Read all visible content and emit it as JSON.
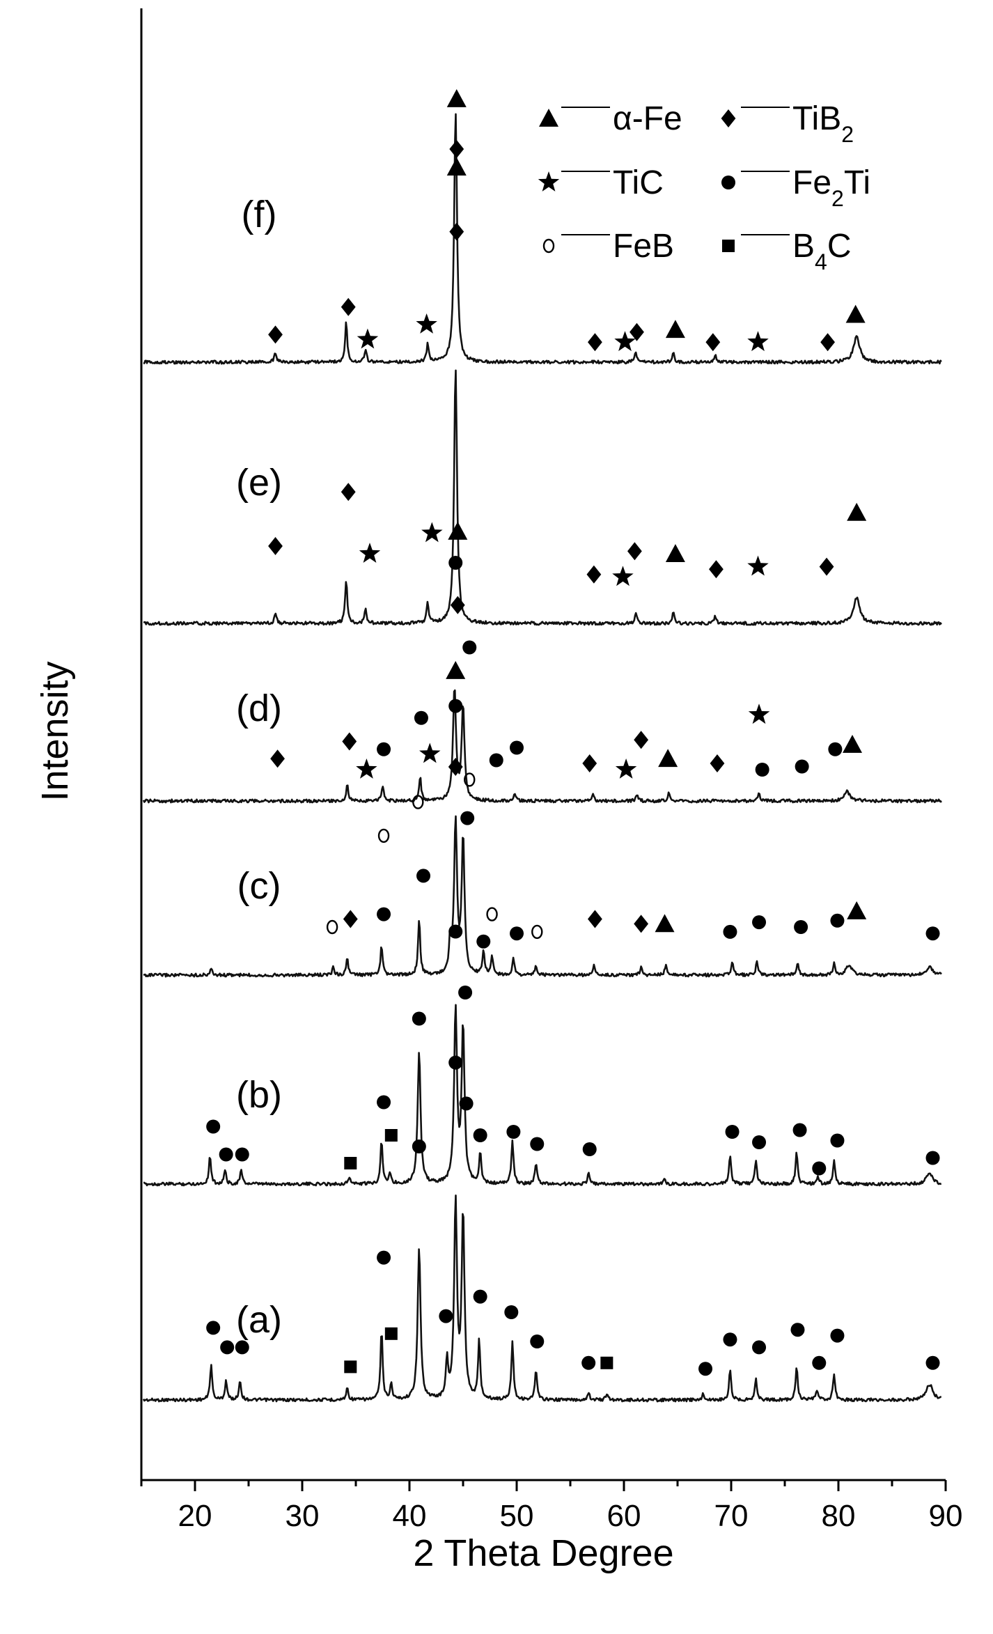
{
  "chart_data": {
    "type": "line",
    "xlabel": "2 Theta Degree",
    "ylabel": "Intensity",
    "xlim": [
      15,
      90
    ],
    "xticks": [
      20,
      30,
      40,
      50,
      60,
      70,
      80,
      90
    ],
    "yticks_shown": false,
    "grid": false,
    "legend": {
      "placement": "top-right",
      "entries": [
        {
          "phase": "alpha_Fe",
          "marker": "triangle",
          "label": "α-Fe"
        },
        {
          "phase": "TiB2",
          "marker": "diamond",
          "label": "TiB",
          "sub": "2"
        },
        {
          "phase": "TiC",
          "marker": "star",
          "label": "TiC"
        },
        {
          "phase": "Fe2Ti",
          "marker": "circle",
          "label": "Fe",
          "sub": "2",
          "suffix": "Ti"
        },
        {
          "phase": "FeB",
          "marker": "open-circle",
          "label": "FeB"
        },
        {
          "phase": "B4C",
          "marker": "square",
          "label": "B",
          "sub": "4",
          "suffix": "C"
        }
      ]
    },
    "series": [
      {
        "name": "(a)",
        "peaks": [
          [
            21.5,
            0.18
          ],
          [
            22.9,
            0.1
          ],
          [
            24.2,
            0.1
          ],
          [
            34.2,
            0.06
          ],
          [
            37.4,
            0.35
          ],
          [
            38.3,
            0.08
          ],
          [
            40.9,
            0.78
          ],
          [
            43.5,
            0.2
          ],
          [
            44.3,
            1.0
          ],
          [
            45.0,
            0.95
          ],
          [
            46.5,
            0.3
          ],
          [
            49.6,
            0.3
          ],
          [
            51.8,
            0.15
          ],
          [
            56.7,
            0.04
          ],
          [
            58.4,
            0.03
          ],
          [
            67.4,
            0.03
          ],
          [
            69.9,
            0.15
          ],
          [
            72.3,
            0.11
          ],
          [
            76.1,
            0.17
          ],
          [
            78.0,
            0.05
          ],
          [
            79.6,
            0.13
          ],
          [
            88.5,
            0.08
          ]
        ],
        "markers": [
          {
            "type": "circle",
            "x": 21.7,
            "y": 0.37
          },
          {
            "type": "circle",
            "x": 23.0,
            "y": 0.27
          },
          {
            "type": "circle",
            "x": 24.4,
            "y": 0.27
          },
          {
            "type": "square",
            "x": 34.5,
            "y": 0.17
          },
          {
            "type": "circle",
            "x": 37.6,
            "y": 0.73
          },
          {
            "type": "square",
            "x": 38.3,
            "y": 0.34
          },
          {
            "type": "circle",
            "x": 40.9,
            "y": 1.3
          },
          {
            "type": "circle",
            "x": 43.4,
            "y": 0.43
          },
          {
            "type": "circle",
            "x": 44.3,
            "y": 1.73
          },
          {
            "type": "circle",
            "x": 45.3,
            "y": 1.52
          },
          {
            "type": "circle",
            "x": 46.6,
            "y": 0.53
          },
          {
            "type": "circle",
            "x": 49.5,
            "y": 0.45
          },
          {
            "type": "circle",
            "x": 51.9,
            "y": 0.3
          },
          {
            "type": "circle",
            "x": 56.7,
            "y": 0.19
          },
          {
            "type": "square",
            "x": 58.4,
            "y": 0.19
          },
          {
            "type": "circle",
            "x": 67.6,
            "y": 0.16
          },
          {
            "type": "circle",
            "x": 69.9,
            "y": 0.31
          },
          {
            "type": "circle",
            "x": 72.6,
            "y": 0.27
          },
          {
            "type": "circle",
            "x": 76.2,
            "y": 0.36
          },
          {
            "type": "circle",
            "x": 78.2,
            "y": 0.19
          },
          {
            "type": "circle",
            "x": 79.9,
            "y": 0.33
          },
          {
            "type": "circle",
            "x": 88.8,
            "y": 0.19
          }
        ]
      },
      {
        "name": "(b)",
        "peaks": [
          [
            21.4,
            0.16
          ],
          [
            22.8,
            0.08
          ],
          [
            24.3,
            0.08
          ],
          [
            34.4,
            0.04
          ],
          [
            37.4,
            0.25
          ],
          [
            38.2,
            0.06
          ],
          [
            40.9,
            0.76
          ],
          [
            44.3,
            1.0
          ],
          [
            45.0,
            0.9
          ],
          [
            46.6,
            0.17
          ],
          [
            49.6,
            0.25
          ],
          [
            51.8,
            0.12
          ],
          [
            56.7,
            0.06
          ],
          [
            63.8,
            0.03
          ],
          [
            69.9,
            0.16
          ],
          [
            72.3,
            0.14
          ],
          [
            76.1,
            0.18
          ],
          [
            78.1,
            0.04
          ],
          [
            79.6,
            0.13
          ],
          [
            88.5,
            0.06
          ]
        ],
        "markers": [
          {
            "type": "circle",
            "x": 21.7,
            "y": 0.33
          },
          {
            "type": "circle",
            "x": 22.9,
            "y": 0.17
          },
          {
            "type": "circle",
            "x": 24.4,
            "y": 0.17
          },
          {
            "type": "square",
            "x": 34.5,
            "y": 0.12
          },
          {
            "type": "circle",
            "x": 37.6,
            "y": 0.47
          },
          {
            "type": "square",
            "x": 38.3,
            "y": 0.28
          },
          {
            "type": "circle",
            "x": 40.9,
            "y": 0.95
          },
          {
            "type": "circle",
            "x": 44.3,
            "y": 1.45
          },
          {
            "type": "circle",
            "x": 45.2,
            "y": 1.1
          },
          {
            "type": "circle",
            "x": 46.6,
            "y": 0.28
          },
          {
            "type": "circle",
            "x": 49.7,
            "y": 0.3
          },
          {
            "type": "circle",
            "x": 51.9,
            "y": 0.23
          },
          {
            "type": "circle",
            "x": 56.8,
            "y": 0.2
          },
          {
            "type": "circle",
            "x": 70.1,
            "y": 0.3
          },
          {
            "type": "circle",
            "x": 72.6,
            "y": 0.24
          },
          {
            "type": "circle",
            "x": 76.4,
            "y": 0.31
          },
          {
            "type": "circle",
            "x": 78.2,
            "y": 0.09
          },
          {
            "type": "circle",
            "x": 79.9,
            "y": 0.25
          },
          {
            "type": "circle",
            "x": 88.8,
            "y": 0.15
          }
        ]
      },
      {
        "name": "(c)",
        "peaks": [
          [
            21.5,
            0.04
          ],
          [
            32.9,
            0.05
          ],
          [
            34.2,
            0.1
          ],
          [
            37.4,
            0.18
          ],
          [
            40.9,
            0.35
          ],
          [
            43.8,
            0.2
          ],
          [
            44.3,
            0.95
          ],
          [
            45.0,
            0.85
          ],
          [
            46.9,
            0.15
          ],
          [
            47.7,
            0.12
          ],
          [
            49.7,
            0.1
          ],
          [
            51.8,
            0.06
          ],
          [
            57.2,
            0.06
          ],
          [
            61.6,
            0.05
          ],
          [
            63.9,
            0.06
          ],
          [
            70.1,
            0.08
          ],
          [
            72.4,
            0.08
          ],
          [
            76.2,
            0.08
          ],
          [
            79.6,
            0.08
          ],
          [
            81.0,
            0.06
          ],
          [
            88.5,
            0.05
          ]
        ],
        "markers": [
          {
            "type": "open-circle",
            "x": 32.8,
            "y": 0.3
          },
          {
            "type": "diamond",
            "x": 34.5,
            "y": 0.35
          },
          {
            "type": "circle",
            "x": 37.6,
            "y": 0.38
          },
          {
            "type": "open-circle",
            "x": 37.6,
            "y": 0.87
          },
          {
            "type": "circle",
            "x": 41.3,
            "y": 0.62
          },
          {
            "type": "open-circle",
            "x": 40.8,
            "y": 1.08
          },
          {
            "type": "diamond",
            "x": 44.3,
            "y": 1.3
          },
          {
            "type": "circle",
            "x": 44.3,
            "y": 1.68
          },
          {
            "type": "triangle",
            "x": 44.3,
            "y": 1.9
          },
          {
            "type": "open-circle",
            "x": 45.6,
            "y": 1.22
          },
          {
            "type": "circle",
            "x": 45.4,
            "y": 0.98
          },
          {
            "type": "circle",
            "x": 46.9,
            "y": 0.21
          },
          {
            "type": "open-circle",
            "x": 47.7,
            "y": 0.38
          },
          {
            "type": "circle",
            "x": 50.0,
            "y": 0.26
          },
          {
            "type": "open-circle",
            "x": 51.9,
            "y": 0.27
          },
          {
            "type": "diamond",
            "x": 57.3,
            "y": 0.35
          },
          {
            "type": "diamond",
            "x": 61.6,
            "y": 0.32
          },
          {
            "type": "triangle",
            "x": 63.8,
            "y": 0.32
          },
          {
            "type": "circle",
            "x": 69.9,
            "y": 0.27
          },
          {
            "type": "circle",
            "x": 72.6,
            "y": 0.33
          },
          {
            "type": "circle",
            "x": 76.5,
            "y": 0.3
          },
          {
            "type": "circle",
            "x": 79.9,
            "y": 0.34
          },
          {
            "type": "triangle",
            "x": 81.7,
            "y": 0.4
          },
          {
            "type": "circle",
            "x": 88.8,
            "y": 0.26
          }
        ]
      },
      {
        "name": "(d)",
        "peaks": [
          [
            34.2,
            0.1
          ],
          [
            37.5,
            0.1
          ],
          [
            41.0,
            0.15
          ],
          [
            44.2,
            0.72
          ],
          [
            45.0,
            0.6
          ],
          [
            49.8,
            0.05
          ],
          [
            57.1,
            0.04
          ],
          [
            61.2,
            0.04
          ],
          [
            64.2,
            0.05
          ],
          [
            72.6,
            0.05
          ],
          [
            80.8,
            0.06
          ]
        ],
        "markers": [
          {
            "type": "diamond",
            "x": 27.7,
            "y": 0.27
          },
          {
            "type": "diamond",
            "x": 34.4,
            "y": 0.38
          },
          {
            "type": "star",
            "x": 36.0,
            "y": 0.2
          },
          {
            "type": "circle",
            "x": 37.6,
            "y": 0.33
          },
          {
            "type": "circle",
            "x": 41.1,
            "y": 0.53
          },
          {
            "type": "star",
            "x": 41.9,
            "y": 0.3
          },
          {
            "type": "diamond",
            "x": 44.5,
            "y": 1.25
          },
          {
            "type": "circle",
            "x": 44.3,
            "y": 1.52
          },
          {
            "type": "triangle",
            "x": 44.5,
            "y": 1.72
          },
          {
            "type": "circle",
            "x": 45.6,
            "y": 0.98
          },
          {
            "type": "circle",
            "x": 48.1,
            "y": 0.26
          },
          {
            "type": "circle",
            "x": 50.0,
            "y": 0.34
          },
          {
            "type": "diamond",
            "x": 56.8,
            "y": 0.24
          },
          {
            "type": "star",
            "x": 60.2,
            "y": 0.2
          },
          {
            "type": "diamond",
            "x": 61.6,
            "y": 0.39
          },
          {
            "type": "triangle",
            "x": 64.1,
            "y": 0.27
          },
          {
            "type": "diamond",
            "x": 68.7,
            "y": 0.24
          },
          {
            "type": "star",
            "x": 72.6,
            "y": 0.55
          },
          {
            "type": "circle",
            "x": 72.9,
            "y": 0.2
          },
          {
            "type": "circle",
            "x": 76.6,
            "y": 0.22
          },
          {
            "type": "circle",
            "x": 79.7,
            "y": 0.33
          },
          {
            "type": "triangle",
            "x": 81.3,
            "y": 0.36
          }
        ]
      },
      {
        "name": "(e)",
        "peaks": [
          [
            27.5,
            0.04
          ],
          [
            34.1,
            0.17
          ],
          [
            35.9,
            0.06
          ],
          [
            41.7,
            0.08
          ],
          [
            44.3,
            1.0
          ],
          [
            61.1,
            0.04
          ],
          [
            64.6,
            0.04
          ],
          [
            68.5,
            0.03
          ],
          [
            81.7,
            0.1
          ]
        ],
        "markers": [
          {
            "type": "diamond",
            "x": 27.5,
            "y": 0.3
          },
          {
            "type": "diamond",
            "x": 34.3,
            "y": 0.51
          },
          {
            "type": "star",
            "x": 36.3,
            "y": 0.27
          },
          {
            "type": "star",
            "x": 42.1,
            "y": 0.35
          },
          {
            "type": "diamond",
            "x": 44.4,
            "y": 1.52
          },
          {
            "type": "triangle",
            "x": 44.4,
            "y": 1.77
          },
          {
            "type": "diamond",
            "x": 57.2,
            "y": 0.19
          },
          {
            "type": "star",
            "x": 59.9,
            "y": 0.18
          },
          {
            "type": "diamond",
            "x": 61.0,
            "y": 0.28
          },
          {
            "type": "triangle",
            "x": 64.8,
            "y": 0.27
          },
          {
            "type": "diamond",
            "x": 68.6,
            "y": 0.21
          },
          {
            "type": "star",
            "x": 72.5,
            "y": 0.22
          },
          {
            "type": "diamond",
            "x": 78.9,
            "y": 0.22
          },
          {
            "type": "triangle",
            "x": 81.7,
            "y": 0.43
          }
        ]
      },
      {
        "name": "(f)",
        "peaks": [
          [
            27.5,
            0.04
          ],
          [
            34.1,
            0.16
          ],
          [
            35.9,
            0.05
          ],
          [
            41.7,
            0.07
          ],
          [
            44.3,
            1.0
          ],
          [
            61.1,
            0.04
          ],
          [
            64.6,
            0.04
          ],
          [
            68.5,
            0.03
          ],
          [
            81.7,
            0.1
          ]
        ],
        "markers": [
          {
            "type": "diamond",
            "x": 27.5,
            "y": 0.11
          },
          {
            "type": "diamond",
            "x": 34.3,
            "y": 0.22
          },
          {
            "type": "star",
            "x": 36.1,
            "y": 0.09
          },
          {
            "type": "star",
            "x": 41.6,
            "y": 0.15
          },
          {
            "type": "diamond",
            "x": 44.4,
            "y": 0.85
          },
          {
            "type": "triangle",
            "x": 44.4,
            "y": 1.05
          },
          {
            "type": "diamond",
            "x": 57.3,
            "y": 0.08
          },
          {
            "type": "star",
            "x": 60.1,
            "y": 0.08
          },
          {
            "type": "diamond",
            "x": 61.2,
            "y": 0.12
          },
          {
            "type": "triangle",
            "x": 64.8,
            "y": 0.13
          },
          {
            "type": "diamond",
            "x": 68.3,
            "y": 0.08
          },
          {
            "type": "star",
            "x": 72.5,
            "y": 0.08
          },
          {
            "type": "diamond",
            "x": 79.0,
            "y": 0.08
          },
          {
            "type": "triangle",
            "x": 81.6,
            "y": 0.19
          }
        ]
      }
    ]
  }
}
